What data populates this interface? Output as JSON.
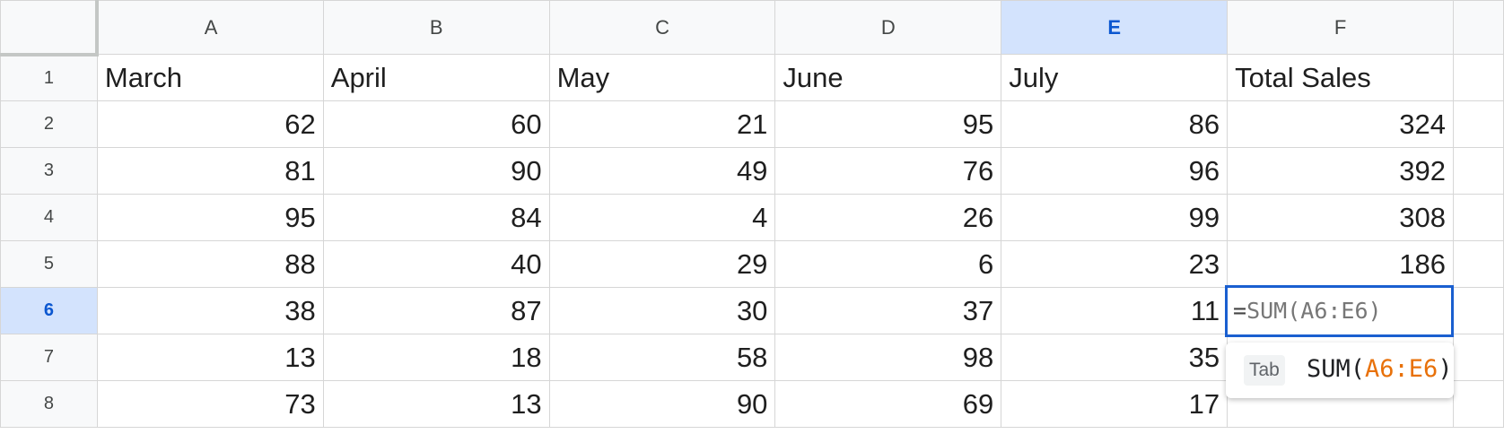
{
  "columns": [
    "A",
    "B",
    "C",
    "D",
    "E",
    "F"
  ],
  "selected_column": "E",
  "selected_row": "6",
  "rows": [
    {
      "n": "1",
      "cells": [
        "March",
        "April",
        "May",
        "June",
        "July",
        "Total Sales"
      ]
    },
    {
      "n": "2",
      "cells": [
        "62",
        "60",
        "21",
        "95",
        "86",
        "324"
      ]
    },
    {
      "n": "3",
      "cells": [
        "81",
        "90",
        "49",
        "76",
        "96",
        "392"
      ]
    },
    {
      "n": "4",
      "cells": [
        "95",
        "84",
        "4",
        "26",
        "99",
        "308"
      ]
    },
    {
      "n": "5",
      "cells": [
        "88",
        "40",
        "29",
        "6",
        "23",
        "186"
      ]
    },
    {
      "n": "6",
      "cells": [
        "38",
        "87",
        "30",
        "37",
        "11",
        ""
      ]
    },
    {
      "n": "7",
      "cells": [
        "13",
        "18",
        "58",
        "98",
        "35",
        ""
      ]
    },
    {
      "n": "8",
      "cells": [
        "73",
        "13",
        "90",
        "69",
        "17",
        ""
      ]
    }
  ],
  "active_cell": {
    "eq": "=",
    "fn": "SUM(",
    "range": "A6:E6",
    "close": ")"
  },
  "suggestion": {
    "key": "Tab",
    "fn": "SUM(",
    "range": "A6:E6",
    "close": ")"
  }
}
